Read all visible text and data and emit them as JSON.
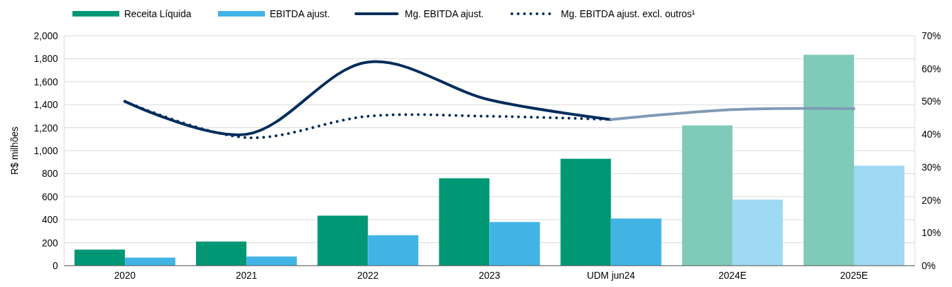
{
  "chart_data": {
    "type": "bar",
    "ylabel": "R$ milhões",
    "categories": [
      "2020",
      "2021",
      "2022",
      "2023",
      "UDM jun24",
      "2024E",
      "2025E"
    ],
    "series": [
      {
        "name": "Receita Líquida",
        "color": "#009874",
        "colors": [
          "#009874",
          "#009874",
          "#009874",
          "#009874",
          "#009874",
          "#80cab9",
          "#80cab9"
        ],
        "values": [
          140,
          210,
          435,
          760,
          930,
          1220,
          1835
        ]
      },
      {
        "name": "EBITDA ajust.",
        "color": "#41b4e5",
        "colors": [
          "#41b4e5",
          "#41b4e5",
          "#41b4e5",
          "#41b4e5",
          "#41b4e5",
          "#a0d9f2",
          "#a0d9f2"
        ],
        "values": [
          70,
          80,
          265,
          380,
          410,
          575,
          870
        ]
      },
      {
        "name": "Mg. EBITDA ajust.",
        "type": "line",
        "axis": "y2",
        "color": "#002d5c",
        "line_style": "solid",
        "values": [
          50,
          40,
          62,
          50.5,
          44.5,
          null,
          null
        ]
      },
      {
        "name": "Mg. EBITDA ajust. excl. outros¹",
        "type": "line",
        "axis": "y2",
        "color": "#002d5c",
        "line_style": "dotted",
        "values": [
          50,
          39,
          45.5,
          45.5,
          44.5,
          null,
          null
        ]
      },
      {
        "type": "line",
        "axis": "y2",
        "color": "#7f9bb5",
        "line_style": "solid",
        "values": [
          null,
          null,
          null,
          null,
          44.5,
          47.5,
          47.8
        ]
      }
    ],
    "ylim": [
      0,
      2000
    ],
    "yticks": [
      {
        "value": 0,
        "label": "0"
      },
      {
        "value": 200,
        "label": "200"
      },
      {
        "value": 400,
        "label": "400"
      },
      {
        "value": 600,
        "label": "600"
      },
      {
        "value": 800,
        "label": "800"
      },
      {
        "value": 1000,
        "label": "1,000"
      },
      {
        "value": 1200,
        "label": "1,200"
      },
      {
        "value": 1400,
        "label": "1,400"
      },
      {
        "value": 1600,
        "label": "1,600"
      },
      {
        "value": 1800,
        "label": "1,800"
      },
      {
        "value": 2000,
        "label": "2,000"
      }
    ],
    "y2lim": [
      0,
      70
    ],
    "y2ticks": [
      {
        "value": 0,
        "label": "0%"
      },
      {
        "value": 10,
        "label": "10%"
      },
      {
        "value": 20,
        "label": "20%"
      },
      {
        "value": 30,
        "label": "30%"
      },
      {
        "value": 40,
        "label": "40%"
      },
      {
        "value": 50,
        "label": "50%"
      },
      {
        "value": 60,
        "label": "60%"
      },
      {
        "value": 70,
        "label": "70%"
      }
    ],
    "grid": "y",
    "legend": "top left"
  }
}
